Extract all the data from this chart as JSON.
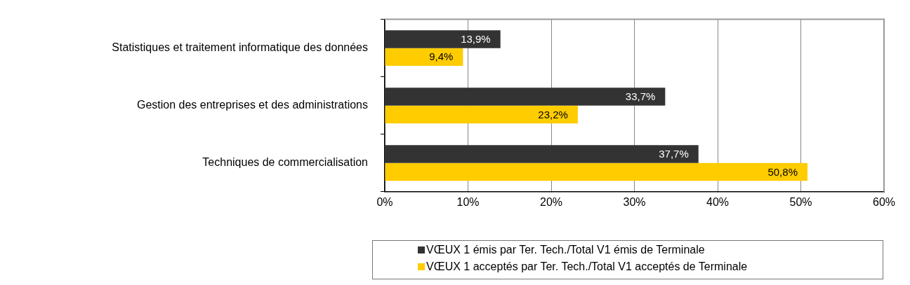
{
  "chart_data": {
    "type": "bar",
    "orientation": "horizontal",
    "categories": [
      "Statistiques et traitement informatique des données",
      "Gestion des entreprises et des administrations",
      "Techniques de commercialisation"
    ],
    "series": [
      {
        "name": "VŒUX 1 émis par Ter. Tech./Total V1 émis de Terminale",
        "color": "#333333",
        "values": [
          13.9,
          33.7,
          37.7
        ],
        "value_labels": [
          "13,9%",
          "33,7%",
          "37,7%"
        ]
      },
      {
        "name": "VŒUX 1 acceptés par Ter. Tech./Total V1 acceptés de Terminale",
        "color": "#ffcc00",
        "values": [
          9.4,
          23.2,
          50.8
        ],
        "value_labels": [
          "9,4%",
          "23,2%",
          "50,8%"
        ]
      }
    ],
    "xlim": [
      0,
      60
    ],
    "xticks": [
      {
        "value": 0,
        "label": "0%"
      },
      {
        "value": 10,
        "label": "10%"
      },
      {
        "value": 20,
        "label": "20%"
      },
      {
        "value": 30,
        "label": "30%"
      },
      {
        "value": 40,
        "label": "40%"
      },
      {
        "value": 50,
        "label": "50%"
      },
      {
        "value": 60,
        "label": "60%"
      }
    ],
    "grid": "x",
    "legend": "bottom"
  }
}
